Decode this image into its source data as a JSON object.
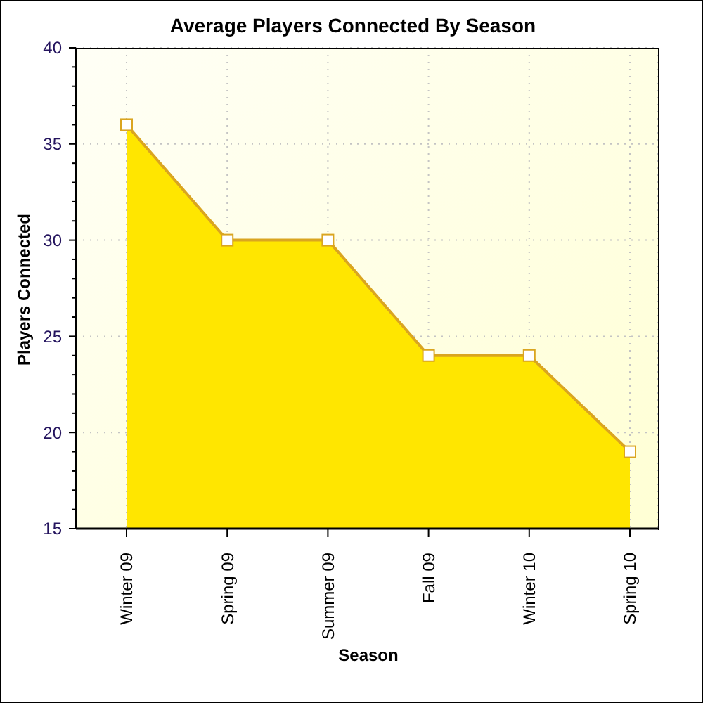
{
  "chart_data": {
    "type": "area",
    "title": "Average Players Connected By Season",
    "xlabel": "Season",
    "ylabel": "Players Connected",
    "categories": [
      "Winter 09",
      "Spring 09",
      "Summer 09",
      "Fall 09",
      "Winter 10",
      "Spring 10"
    ],
    "values": [
      36,
      30,
      30,
      24,
      24,
      19
    ],
    "color": "#ffe600",
    "ylim": [
      15,
      40
    ],
    "yticks": [
      15,
      {
        "value": 16,
        "label": null
      },
      {
        "value": 17,
        "label": null
      },
      {
        "value": 18,
        "label": null
      },
      {
        "value": 19,
        "label": null
      },
      20,
      {
        "value": 21,
        "label": null
      },
      {
        "value": 22,
        "label": null
      },
      {
        "value": 23,
        "label": null
      },
      {
        "value": 24,
        "label": null
      },
      25,
      {
        "value": 26,
        "label": null
      },
      {
        "value": 27,
        "label": null
      },
      {
        "value": 28,
        "label": null
      },
      {
        "value": 29,
        "label": null
      },
      30,
      {
        "value": 31,
        "label": null
      },
      {
        "value": 32,
        "label": null
      },
      {
        "value": 33,
        "label": null
      },
      {
        "value": 34,
        "label": null
      },
      35,
      {
        "value": 36,
        "label": null
      },
      {
        "value": 37,
        "label": null
      },
      {
        "value": 38,
        "label": null
      },
      {
        "value": 39,
        "label": null
      },
      40
    ],
    "grid": true,
    "marker": "square"
  }
}
